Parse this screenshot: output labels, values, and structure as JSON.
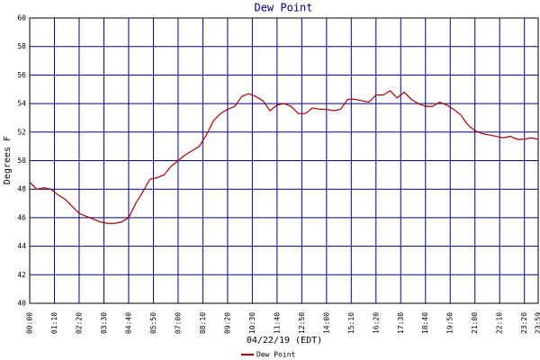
{
  "chart_data": {
    "type": "line",
    "title": "Dew Point",
    "xlabel": "04/22/19 (EDT)",
    "ylabel": "Degrees F",
    "x": [
      0,
      20,
      40,
      60,
      80,
      100,
      120,
      140,
      160,
      180,
      200,
      220,
      240,
      260,
      280,
      300,
      320,
      340,
      360,
      380,
      400,
      420,
      440,
      460,
      480,
      500,
      520,
      540,
      560,
      580,
      600,
      620,
      640,
      660,
      680,
      700,
      720,
      740,
      760,
      780,
      800,
      820,
      840,
      860,
      880,
      900,
      920,
      940,
      960,
      980,
      1000,
      1020,
      1040,
      1060,
      1080,
      1100,
      1120,
      1140,
      1160,
      1180,
      1200,
      1220,
      1240,
      1260,
      1280,
      1300,
      1320,
      1340,
      1360,
      1380,
      1400,
      1420,
      1439
    ],
    "series": [
      {
        "name": "Dew Point",
        "color": "#aa0000",
        "values": [
          48.5,
          48.0,
          48.1,
          48.0,
          47.6,
          47.3,
          46.8,
          46.3,
          46.1,
          45.9,
          45.7,
          45.6,
          45.6,
          45.7,
          46.0,
          47.0,
          47.8,
          48.7,
          48.8,
          49.0,
          49.6,
          50.0,
          50.4,
          50.7,
          51.0,
          51.8,
          52.8,
          53.3,
          53.6,
          53.8,
          54.5,
          54.7,
          54.5,
          54.2,
          53.5,
          53.9,
          54.0,
          53.8,
          53.3,
          53.3,
          53.7,
          53.6,
          53.6,
          53.5,
          53.6,
          54.3,
          54.3,
          54.2,
          54.1,
          54.6,
          54.6,
          54.9,
          54.4,
          54.8,
          54.3,
          54.0,
          53.8,
          53.8,
          54.1,
          53.9,
          53.6,
          53.2,
          52.5,
          52.1,
          51.9,
          51.8,
          51.7,
          51.6,
          51.7,
          51.5,
          51.5,
          51.6,
          51.5
        ]
      }
    ],
    "xlim": [
      0,
      1439
    ],
    "xticks": [
      {
        "value": 0,
        "label": "00:00"
      },
      {
        "value": 70,
        "label": "01:10"
      },
      {
        "value": 140,
        "label": "02:20"
      },
      {
        "value": 210,
        "label": "03:30"
      },
      {
        "value": 280,
        "label": "04:40"
      },
      {
        "value": 350,
        "label": "05:50"
      },
      {
        "value": 420,
        "label": "07:00"
      },
      {
        "value": 490,
        "label": "08:10"
      },
      {
        "value": 560,
        "label": "09:20"
      },
      {
        "value": 630,
        "label": "10:30"
      },
      {
        "value": 700,
        "label": "11:40"
      },
      {
        "value": 770,
        "label": "12:50"
      },
      {
        "value": 840,
        "label": "14:00"
      },
      {
        "value": 910,
        "label": "15:10"
      },
      {
        "value": 980,
        "label": "16:20"
      },
      {
        "value": 1050,
        "label": "17:30"
      },
      {
        "value": 1120,
        "label": "18:40"
      },
      {
        "value": 1190,
        "label": "19:50"
      },
      {
        "value": 1260,
        "label": "21:00"
      },
      {
        "value": 1330,
        "label": "22:10"
      },
      {
        "value": 1400,
        "label": "23:20"
      },
      {
        "value": 1439,
        "label": "23:59"
      }
    ],
    "ylim": [
      40,
      60
    ],
    "yticks": [
      40,
      42,
      44,
      46,
      48,
      50,
      52,
      54,
      56,
      58,
      60
    ],
    "grid": true,
    "grid_color": "#000080"
  }
}
